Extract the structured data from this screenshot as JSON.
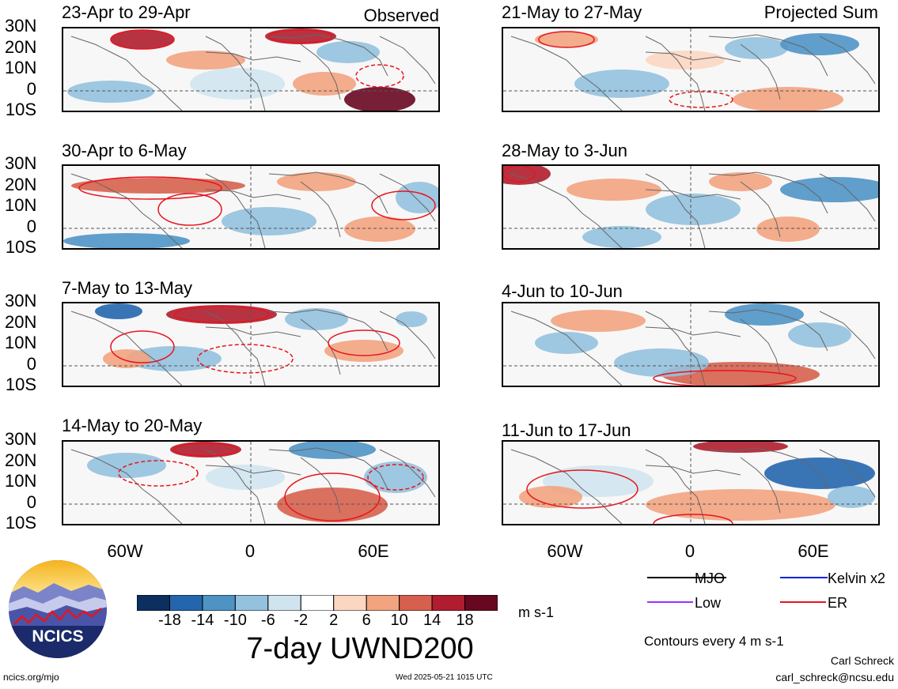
{
  "left_tag": "Observed",
  "right_tag": "Projected Sum",
  "left_panels": [
    {
      "title": "23-Apr to 29-Apr"
    },
    {
      "title": "30-Apr to 6-May"
    },
    {
      "title": "7-May to 13-May"
    },
    {
      "title": "14-May to 20-May"
    }
  ],
  "right_panels": [
    {
      "title": "21-May to 27-May"
    },
    {
      "title": "28-May to 3-Jun"
    },
    {
      "title": "4-Jun to 10-Jun"
    },
    {
      "title": "11-Jun to 17-Jun"
    }
  ],
  "lat_labels": [
    "30N",
    "20N",
    "10N",
    "0",
    "10S"
  ],
  "lon_labels": [
    "60W",
    "0",
    "60E"
  ],
  "colorbar": {
    "labels": [
      "-18",
      "-14",
      "-10",
      "-6",
      "-2",
      "2",
      "6",
      "10",
      "14",
      "18"
    ],
    "colors": [
      "#0b2f5e",
      "#2466ad",
      "#4f93c5",
      "#93c1de",
      "#d0e4f0",
      "#ffffff",
      "#fbd6c1",
      "#f2a37f",
      "#d6604d",
      "#b01d2e",
      "#670720"
    ],
    "units": "m s-1"
  },
  "title": "7-day UWND200",
  "legend": {
    "items": [
      {
        "label": "MJO",
        "color": "#000000"
      },
      {
        "label": "Kelvin x2",
        "color": "#0022dd"
      },
      {
        "label": "Low",
        "color": "#9b30ff"
      },
      {
        "label": "ER",
        "color": "#e8141c"
      }
    ],
    "contours_note": "Contours every 4 m s-1"
  },
  "logo_text": "NCICS",
  "author": "Carl Schreck",
  "email": "carl_schreck@ncsu.edu",
  "site": "ncics.org/mjo",
  "timestamp": "Wed 2025-05-21 1015 UTC"
}
